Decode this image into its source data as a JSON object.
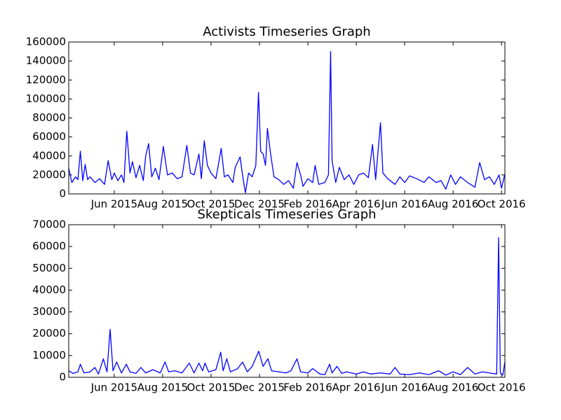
{
  "chart_data": [
    {
      "type": "line",
      "title": "Activists Timeseries Graph",
      "color": "#0000ff",
      "x": [
        4.12,
        4.25,
        4.4,
        4.5,
        4.6,
        4.7,
        4.8,
        4.9,
        5.0,
        5.2,
        5.4,
        5.6,
        5.75,
        5.9,
        6.0,
        6.15,
        6.3,
        6.4,
        6.52,
        6.65,
        6.75,
        6.9,
        7.05,
        7.2,
        7.3,
        7.42,
        7.55,
        7.7,
        7.85,
        8.03,
        8.2,
        8.4,
        8.6,
        8.8,
        9.0,
        9.15,
        9.3,
        9.5,
        9.6,
        9.72,
        9.85,
        10.0,
        10.2,
        10.42,
        10.55,
        10.7,
        10.9,
        11.0,
        11.2,
        11.3,
        11.42,
        11.55,
        11.7,
        11.85,
        11.96,
        12.05,
        12.15,
        12.25,
        12.33,
        12.45,
        12.6,
        12.8,
        13.0,
        13.2,
        13.4,
        13.55,
        13.7,
        13.8,
        14.0,
        14.2,
        14.3,
        14.45,
        14.7,
        14.85,
        14.94,
        15.0,
        15.15,
        15.3,
        15.5,
        15.7,
        15.9,
        16.1,
        16.3,
        16.5,
        16.67,
        16.8,
        17.0,
        17.1,
        17.3,
        17.6,
        17.8,
        18.0,
        18.2,
        18.5,
        18.8,
        19.0,
        19.3,
        19.5,
        19.7,
        19.9,
        20.1,
        20.3,
        20.6,
        20.9,
        21.1,
        21.3,
        21.5,
        21.7,
        21.9,
        22.0,
        22.14
      ],
      "values": [
        27000,
        12000,
        18000,
        15000,
        45000,
        14000,
        31000,
        15000,
        18000,
        12000,
        16000,
        10000,
        35000,
        15000,
        22000,
        14000,
        20000,
        12000,
        66000,
        22000,
        34000,
        17000,
        30000,
        14000,
        40000,
        53000,
        18000,
        27000,
        15000,
        50000,
        20000,
        22000,
        16000,
        18000,
        51000,
        22000,
        20000,
        42000,
        16000,
        56000,
        30000,
        22000,
        16000,
        48000,
        18000,
        20000,
        12000,
        28000,
        39000,
        20000,
        1000,
        22000,
        18000,
        30000,
        107000,
        45000,
        42000,
        30000,
        69000,
        44000,
        18000,
        15000,
        10000,
        14000,
        6000,
        33000,
        20000,
        8000,
        16000,
        12000,
        30000,
        10000,
        12000,
        20000,
        150000,
        35000,
        12000,
        28000,
        15000,
        20000,
        10000,
        20000,
        22000,
        17000,
        52000,
        15000,
        75000,
        22000,
        16000,
        10000,
        18000,
        12000,
        19000,
        16000,
        12000,
        18000,
        12000,
        14000,
        5000,
        20000,
        10000,
        18000,
        12000,
        7000,
        33000,
        15000,
        18000,
        10000,
        20000,
        6000,
        21000
      ],
      "xlim": [
        4.12,
        22.14
      ],
      "xticks": [
        {
          "value": 6,
          "label": "Jun 2015"
        },
        {
          "value": 8,
          "label": "Aug 2015"
        },
        {
          "value": 10,
          "label": "Oct 2015"
        },
        {
          "value": 12,
          "label": "Dec 2015"
        },
        {
          "value": 14,
          "label": "Feb 2016"
        },
        {
          "value": 16,
          "label": "Apr 2016"
        },
        {
          "value": 18,
          "label": "Jun 2016"
        },
        {
          "value": 20,
          "label": "Aug 2016"
        },
        {
          "value": 22,
          "label": "Oct 2016"
        }
      ],
      "ylim": [
        0,
        160000
      ],
      "yticks": [
        0,
        20000,
        40000,
        60000,
        80000,
        100000,
        120000,
        140000,
        160000
      ]
    },
    {
      "type": "line",
      "title": "Skepticals Timeseries Graph",
      "color": "#0000ff",
      "x": [
        4.12,
        4.3,
        4.5,
        4.6,
        4.75,
        5.0,
        5.2,
        5.35,
        5.55,
        5.7,
        5.83,
        5.95,
        6.1,
        6.3,
        6.5,
        6.65,
        6.9,
        7.1,
        7.3,
        7.6,
        7.9,
        8.1,
        8.25,
        8.5,
        8.8,
        9.1,
        9.3,
        9.5,
        9.65,
        9.75,
        9.9,
        10.2,
        10.4,
        10.5,
        10.65,
        10.8,
        11.1,
        11.3,
        11.5,
        11.7,
        11.97,
        12.15,
        12.35,
        12.5,
        12.8,
        13.1,
        13.3,
        13.55,
        13.7,
        14.0,
        14.2,
        14.5,
        14.7,
        14.9,
        15.0,
        15.2,
        15.4,
        15.6,
        16.0,
        16.3,
        16.6,
        17.0,
        17.4,
        17.6,
        17.8,
        18.2,
        18.6,
        19.0,
        19.4,
        19.7,
        20.0,
        20.3,
        20.6,
        20.9,
        21.2,
        21.5,
        21.8,
        21.88,
        21.95,
        22.05,
        22.14
      ],
      "values": [
        3000,
        1800,
        2500,
        6000,
        2000,
        2500,
        4500,
        1500,
        8500,
        2500,
        22000,
        3000,
        7000,
        2000,
        6000,
        2500,
        1800,
        4500,
        2000,
        3500,
        2000,
        7000,
        2500,
        3000,
        2000,
        6500,
        2000,
        6500,
        3000,
        6500,
        2500,
        3500,
        11500,
        3000,
        8500,
        2500,
        4000,
        7000,
        2500,
        5000,
        12000,
        5000,
        8500,
        3000,
        2500,
        2000,
        3000,
        8500,
        2500,
        2000,
        4000,
        1500,
        1200,
        6000,
        2000,
        5000,
        1800,
        2500,
        1500,
        2500,
        1500,
        2000,
        1500,
        4500,
        1500,
        1200,
        2000,
        1200,
        3000,
        1000,
        2500,
        1200,
        4500,
        1500,
        2500,
        2000,
        1500,
        64000,
        2000,
        1000,
        7000
      ],
      "xlim": [
        4.12,
        22.14
      ],
      "xticks": [
        {
          "value": 6,
          "label": "Jun 2015"
        },
        {
          "value": 8,
          "label": "Aug 2015"
        },
        {
          "value": 10,
          "label": "Oct 2015"
        },
        {
          "value": 12,
          "label": "Dec 2015"
        },
        {
          "value": 14,
          "label": "Feb 2016"
        },
        {
          "value": 16,
          "label": "Apr 2016"
        },
        {
          "value": 18,
          "label": "Jun 2016"
        },
        {
          "value": 20,
          "label": "Aug 2016"
        },
        {
          "value": 22,
          "label": "Oct 2016"
        }
      ],
      "ylim": [
        0,
        70000
      ],
      "yticks": [
        0,
        10000,
        20000,
        30000,
        40000,
        50000,
        60000,
        70000
      ]
    }
  ]
}
